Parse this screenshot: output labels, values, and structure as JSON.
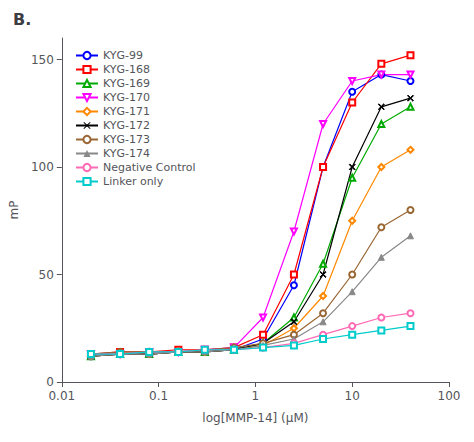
{
  "chart_data": {
    "type": "line",
    "title": "B.",
    "xlabel": "log[MMP-14] (μM)",
    "ylabel": "mP",
    "log": "x",
    "xlim": [
      0.01,
      100
    ],
    "xticks": [
      0.01,
      0.1,
      1,
      10,
      100
    ],
    "ylim": [
      0,
      160
    ],
    "yticks": [
      0,
      50,
      100,
      150
    ],
    "grid": false,
    "legend": "upper left",
    "x": [
      0.02,
      0.04,
      0.08,
      0.16,
      0.3,
      0.6,
      1.2,
      2.5,
      5.0,
      10.0,
      20.0,
      40.0
    ],
    "series": [
      {
        "name": "KYG-99",
        "color": "#0000FF",
        "marker": "circle",
        "values": [
          12,
          13,
          13,
          14,
          14,
          15,
          20,
          45,
          100,
          135,
          143,
          140
        ]
      },
      {
        "name": "KYG-168",
        "color": "#FF0000",
        "marker": "square",
        "values": [
          13,
          14,
          14,
          15,
          15,
          16,
          22,
          50,
          100,
          130,
          148,
          152
        ]
      },
      {
        "name": "KYG-169",
        "color": "#00AA00",
        "marker": "triangle",
        "values": [
          12,
          13,
          13,
          14,
          14,
          15,
          18,
          30,
          55,
          95,
          120,
          128
        ]
      },
      {
        "name": "KYG-170",
        "color": "#FF00FF",
        "marker": "triangle-down",
        "values": [
          13,
          13,
          14,
          14,
          15,
          16,
          30,
          70,
          120,
          140,
          143,
          143
        ]
      },
      {
        "name": "KYG-171",
        "color": "#FF8800",
        "marker": "diamond",
        "values": [
          12,
          13,
          13,
          14,
          14,
          15,
          17,
          25,
          40,
          75,
          100,
          108
        ]
      },
      {
        "name": "KYG-172",
        "color": "#000000",
        "marker": "x",
        "values": [
          12,
          13,
          13,
          14,
          14,
          15,
          18,
          28,
          50,
          100,
          128,
          132
        ]
      },
      {
        "name": "KYG-173",
        "color": "#996633",
        "marker": "circle",
        "values": [
          13,
          14,
          14,
          14,
          15,
          16,
          18,
          22,
          32,
          50,
          72,
          80
        ]
      },
      {
        "name": "KYG-174",
        "color": "#888888",
        "marker": "triangle-filled",
        "values": [
          12,
          13,
          13,
          14,
          14,
          15,
          17,
          20,
          28,
          42,
          58,
          68
        ]
      },
      {
        "name": "Negative Control",
        "color": "#FF69B4",
        "marker": "circle",
        "values": [
          13,
          13,
          14,
          14,
          15,
          15,
          16,
          18,
          22,
          26,
          30,
          32
        ]
      },
      {
        "name": "Linker only",
        "color": "#00CCCC",
        "marker": "square",
        "values": [
          13,
          13,
          14,
          14,
          15,
          15,
          16,
          17,
          20,
          22,
          24,
          26
        ]
      }
    ]
  }
}
